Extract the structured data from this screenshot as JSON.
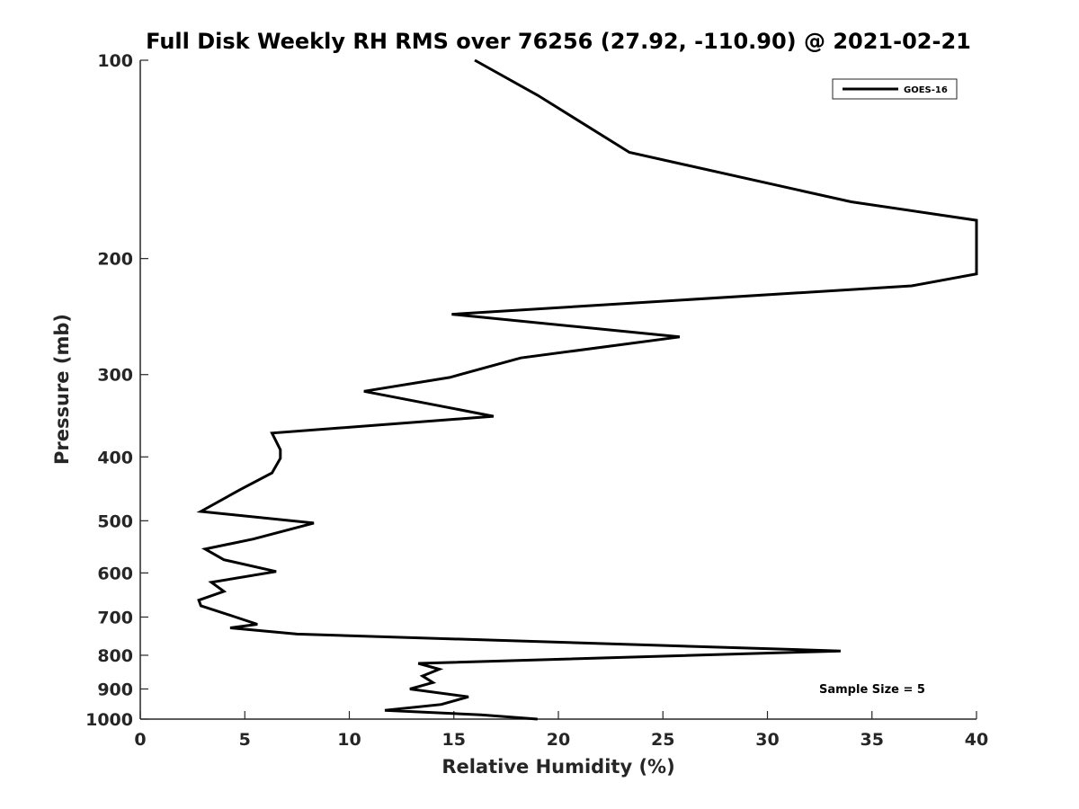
{
  "chart_data": {
    "type": "line",
    "title": "Full Disk Weekly RH RMS over 76256 (27.92, -110.90) @ 2021-02-21",
    "xlabel": "Relative Humidity (%)",
    "ylabel": "Pressure (mb)",
    "xlim": [
      0,
      40
    ],
    "ylim": [
      1000,
      100
    ],
    "yscale": "log",
    "y_reversed": true,
    "xticks": [
      0,
      5,
      10,
      15,
      20,
      25,
      30,
      35,
      40
    ],
    "yticks": [
      100,
      200,
      300,
      400,
      500,
      600,
      700,
      800,
      900,
      1000
    ],
    "grid": false,
    "legend_position": "top-right",
    "annotation": "Sample Size = 5",
    "series": [
      {
        "name": "GOES-16",
        "color": "#000000",
        "x": [
          16.0,
          19.0,
          23.4,
          34.0,
          40.0,
          40.0,
          36.9,
          14.9,
          25.8,
          18.2,
          14.8,
          10.7,
          16.9,
          6.3,
          6.7,
          6.7,
          6.3,
          4.8,
          2.9,
          8.3,
          5.4,
          3.1,
          4.0,
          6.5,
          3.4,
          4.0,
          2.8,
          2.9,
          4.5,
          5.6,
          4.3,
          7.5,
          33.5,
          13.3,
          14.3,
          13.5,
          14.0,
          12.9,
          15.7,
          14.4,
          11.7,
          16.3,
          19.0
        ],
        "y": [
          100,
          113,
          138,
          164,
          175,
          211,
          220,
          243,
          263,
          283,
          303,
          318,
          347,
          368,
          390,
          402,
          423,
          448,
          484,
          504,
          533,
          552,
          573,
          597,
          620,
          640,
          660,
          673,
          699,
          718,
          727,
          743,
          788,
          823,
          840,
          860,
          880,
          900,
          925,
          950,
          970,
          985,
          1000
        ]
      }
    ]
  }
}
